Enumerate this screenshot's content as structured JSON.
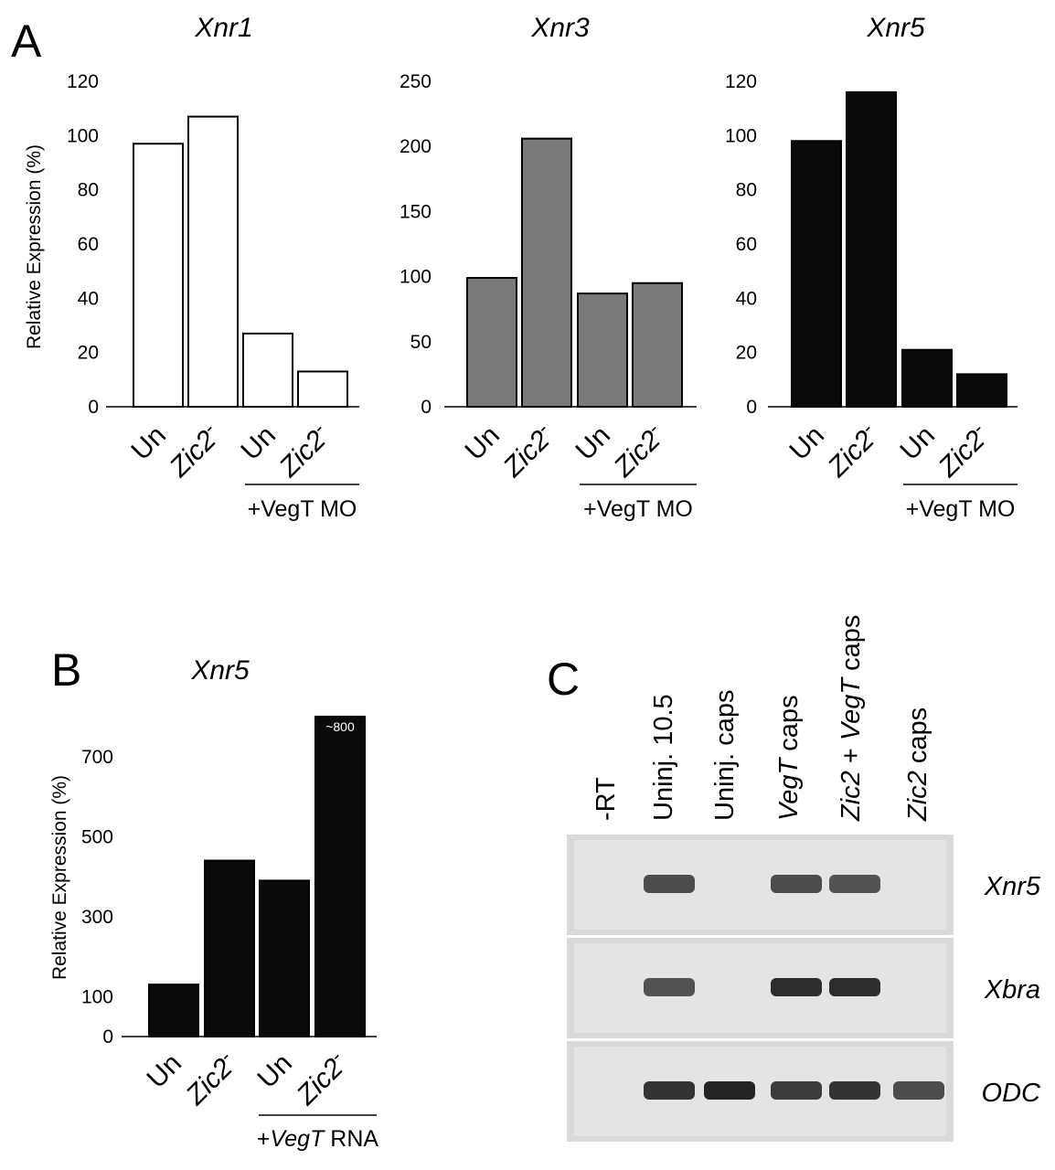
{
  "panel_labels": {
    "a": "A",
    "b": "B",
    "c": "C"
  },
  "chart_data": [
    {
      "type": "bar",
      "panel": "A",
      "title": "Xnr1",
      "ylabel": "Relative Expression (%)",
      "ylim": [
        0,
        120
      ],
      "yticks": [
        0,
        20,
        40,
        60,
        80,
        100,
        120
      ],
      "categories": [
        "Un",
        "Zic2-",
        "Un",
        "Zic2-"
      ],
      "values": [
        97,
        107,
        27,
        13
      ],
      "group_label": "+VegT MO",
      "fill": "#ffffff"
    },
    {
      "type": "bar",
      "panel": "A",
      "title": "Xnr3",
      "ylabel": "",
      "ylim": [
        0,
        250
      ],
      "yticks": [
        0,
        50,
        100,
        150,
        200,
        250
      ],
      "categories": [
        "Un",
        "Zic2-",
        "Un",
        "Zic2-"
      ],
      "values": [
        99,
        206,
        87,
        95
      ],
      "group_label": "+VegT MO",
      "fill": "#7a7a7a"
    },
    {
      "type": "bar",
      "panel": "A",
      "title": "Xnr5",
      "ylabel": "",
      "ylim": [
        0,
        120
      ],
      "yticks": [
        0,
        20,
        40,
        60,
        80,
        100,
        120
      ],
      "categories": [
        "Un",
        "Zic2-",
        "Un",
        "Zic2-"
      ],
      "values": [
        98,
        116,
        21,
        12
      ],
      "group_label": "+VegT MO",
      "fill": "#0a0a0a"
    },
    {
      "type": "bar",
      "panel": "B",
      "title": "Xnr5",
      "ylabel": "Relative Expression (%)",
      "ylim": [
        0,
        800
      ],
      "yticks": [
        0,
        100,
        300,
        500,
        700
      ],
      "categories": [
        "Un",
        "Zic2-",
        "Un",
        "Zic2-"
      ],
      "values": [
        130,
        440,
        390,
        800
      ],
      "data_labels": [
        "",
        "",
        "",
        "~800"
      ],
      "group_label_parts": [
        "+",
        "VegT",
        " RNA"
      ],
      "fill": "#0a0a0a"
    }
  ],
  "gel": {
    "lanes": [
      {
        "parts": [
          {
            "t": "-RT",
            "i": false
          }
        ]
      },
      {
        "parts": [
          {
            "t": "Uninj. 10.5",
            "i": false
          }
        ]
      },
      {
        "parts": [
          {
            "t": "Uninj.  caps",
            "i": false
          }
        ]
      },
      {
        "parts": [
          {
            "t": "VegT",
            "i": true
          },
          {
            "t": " caps",
            "i": false
          }
        ]
      },
      {
        "parts": [
          {
            "t": "Zic2",
            "i": true
          },
          {
            "t": " + ",
            "i": false
          },
          {
            "t": "VegT",
            "i": true
          },
          {
            "t": " caps",
            "i": false
          }
        ]
      },
      {
        "parts": [
          {
            "t": "Zic2",
            "i": true
          },
          {
            "t": " caps",
            "i": false
          }
        ]
      }
    ],
    "rows": [
      {
        "gene": "Xnr5",
        "bands": [
          0,
          0.75,
          0,
          0.75,
          0.7,
          0
        ]
      },
      {
        "gene": "Xbra",
        "bands": [
          0,
          0.7,
          0,
          0.95,
          0.95,
          0
        ]
      },
      {
        "gene": "ODC",
        "bands": [
          0,
          0.9,
          1.0,
          0.85,
          0.9,
          0.75
        ]
      }
    ]
  }
}
